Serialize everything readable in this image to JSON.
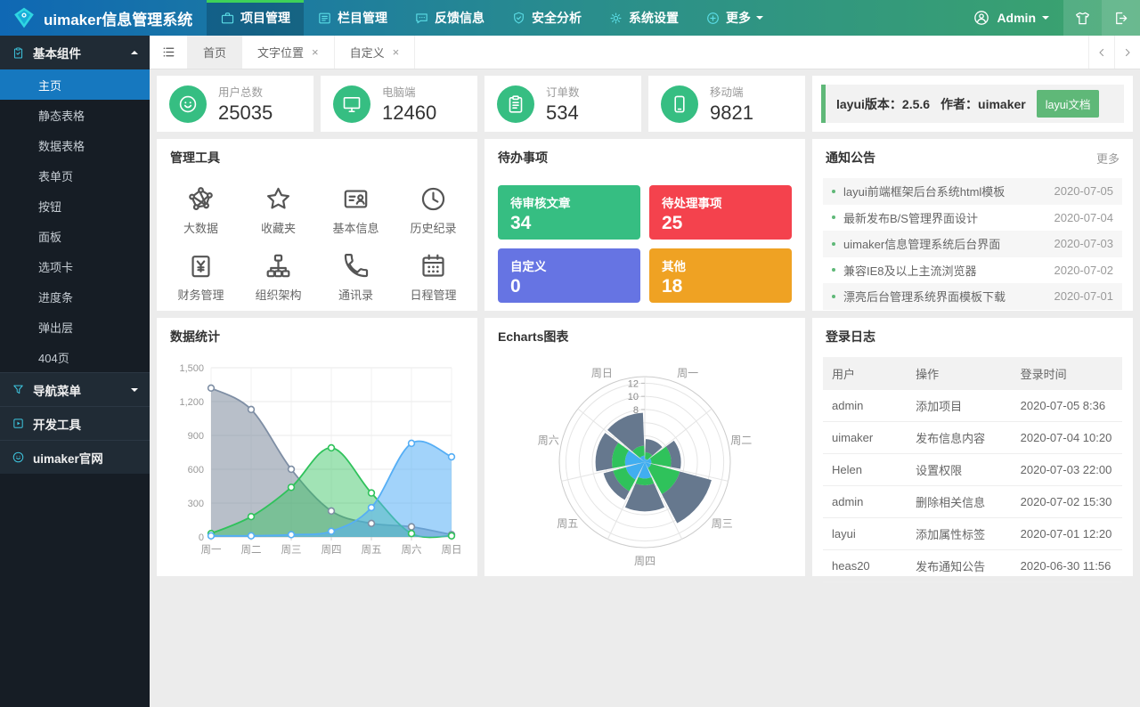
{
  "theme": {
    "header_gradient_left": "#0f68b4",
    "header_gradient_right": "#3ca46c",
    "nav_active_marker": "#3ed159",
    "nav_icon_cyan": "#5bdde6",
    "sidebar_bg": "#161d25",
    "sidebar_active_blue": "#1678bf",
    "accent_green": "#5FB878",
    "stat_icon_green": "#36be82"
  },
  "header": {
    "title": "uimaker信息管理系统",
    "logo_icon": "gem-icon",
    "nav": [
      {
        "label": "项目管理",
        "icon": "briefcase-icon",
        "active": true
      },
      {
        "label": "栏目管理",
        "icon": "list-icon",
        "active": false
      },
      {
        "label": "反馈信息",
        "icon": "chat-icon",
        "active": false
      },
      {
        "label": "安全分析",
        "icon": "shield-icon",
        "active": false
      },
      {
        "label": "系统设置",
        "icon": "gear-icon",
        "active": false
      },
      {
        "label": "更多",
        "icon": "plus-circle-icon",
        "active": false,
        "dropdown": true
      }
    ],
    "user": {
      "name": "Admin",
      "icon": "person-icon"
    },
    "actions": [
      {
        "icon": "tshirt-icon"
      },
      {
        "icon": "logout-icon"
      }
    ]
  },
  "sidebar": {
    "group": {
      "label": "基本组件",
      "icon": "clipboard-check-icon",
      "expanded": true
    },
    "items": [
      {
        "label": "主页",
        "active": true
      },
      {
        "label": "静态表格",
        "active": false
      },
      {
        "label": "数据表格",
        "active": false
      },
      {
        "label": "表单页",
        "active": false
      },
      {
        "label": "按钮",
        "active": false
      },
      {
        "label": "面板",
        "active": false
      },
      {
        "label": "选项卡",
        "active": false
      },
      {
        "label": "进度条",
        "active": false
      },
      {
        "label": "弹出层",
        "active": false
      },
      {
        "label": "404页",
        "active": false
      }
    ],
    "sections": [
      {
        "label": "导航菜单",
        "icon": "funnel-icon",
        "collapsed": true
      },
      {
        "label": "开发工具",
        "icon": "play-square-icon"
      },
      {
        "label": "uimaker官网",
        "icon": "smile-icon"
      }
    ]
  },
  "tabbar": {
    "menu_icon": "hamburger-icon",
    "tabs": [
      {
        "label": "首页",
        "active": true,
        "closable": false
      },
      {
        "label": "文字位置",
        "active": false,
        "closable": true
      },
      {
        "label": "自定义",
        "active": false,
        "closable": true
      }
    ],
    "close_glyph": "×",
    "scroll_icons": [
      "chevron-left-icon",
      "chevron-right-icon"
    ]
  },
  "stats": [
    {
      "label": "用户总数",
      "value": "25035",
      "icon": "smiley-icon"
    },
    {
      "label": "电脑端",
      "value": "12460",
      "icon": "monitor-icon"
    },
    {
      "label": "订单数",
      "value": "534",
      "icon": "clipboard-list-icon"
    },
    {
      "label": "移动端",
      "value": "9821",
      "icon": "mobile-icon"
    }
  ],
  "layui_info": {
    "version_label": "layui版本：2.5.6",
    "author_label": "作者：uimaker",
    "doc_button": "layui文档"
  },
  "tools": {
    "title": "管理工具",
    "items": [
      {
        "label": "大数据",
        "icon": "network-icon"
      },
      {
        "label": "收藏夹",
        "icon": "star-icon"
      },
      {
        "label": "基本信息",
        "icon": "idcard-icon"
      },
      {
        "label": "历史纪录",
        "icon": "clock-icon"
      },
      {
        "label": "财务管理",
        "icon": "finance-icon"
      },
      {
        "label": "组织架构",
        "icon": "orgchart-icon"
      },
      {
        "label": "通讯录",
        "icon": "phone-icon"
      },
      {
        "label": "日程管理",
        "icon": "calendar-icon"
      }
    ]
  },
  "todo": {
    "title": "待办事项",
    "items": [
      {
        "label": "待审核文章",
        "value": "34",
        "color": "#36be82"
      },
      {
        "label": "待处理事项",
        "value": "25",
        "color": "#f4424d"
      },
      {
        "label": "自定义",
        "value": "0",
        "color": "#6674e3"
      },
      {
        "label": "其他",
        "value": "18",
        "color": "#efa223"
      }
    ]
  },
  "notice": {
    "title": "通知公告",
    "more": "更多",
    "items": [
      {
        "text": "layui前端框架后台系统html模板",
        "date": "2020-07-05"
      },
      {
        "text": "最新发布B/S管理界面设计",
        "date": "2020-07-04"
      },
      {
        "text": "uimaker信息管理系统后台界面",
        "date": "2020-07-03"
      },
      {
        "text": "兼容IE8及以上主流浏览器",
        "date": "2020-07-02"
      },
      {
        "text": "漂亮后台管理系统界面模板下载",
        "date": "2020-07-01"
      }
    ]
  },
  "login_log": {
    "title": "登录日志",
    "columns": [
      "用户",
      "操作",
      "登录时间"
    ],
    "rows": [
      [
        "admin",
        "添加项目",
        "2020-07-05 8:36"
      ],
      [
        "uimaker",
        "发布信息内容",
        "2020-07-04 10:20"
      ],
      [
        "Helen",
        "设置权限",
        "2020-07-03 22:00"
      ],
      [
        "admin",
        "删除相关信息",
        "2020-07-02 15:30"
      ],
      [
        "layui",
        "添加属性标签",
        "2020-07-01 12:20"
      ],
      [
        "heas20",
        "发布通知公告",
        "2020-06-30 11:56"
      ]
    ]
  },
  "chart_data": [
    {
      "type": "area",
      "title": "数据统计",
      "categories": [
        "周一",
        "周二",
        "周三",
        "周四",
        "周五",
        "周六",
        "周日"
      ],
      "series": [
        {
          "name": "series-gray",
          "color": "#7e8ea4",
          "fill": "rgba(113,128,148,0.50)",
          "values": [
            1320,
            1130,
            600,
            230,
            120,
            90,
            20
          ]
        },
        {
          "name": "series-green",
          "color": "#2fc25b",
          "fill": "rgba(47,194,91,0.45)",
          "values": [
            30,
            180,
            440,
            790,
            390,
            30,
            10
          ]
        },
        {
          "name": "series-blue",
          "color": "#55aef5",
          "fill": "rgba(85,174,245,0.55)",
          "values": [
            10,
            10,
            20,
            50,
            260,
            830,
            710
          ]
        }
      ],
      "ylim": [
        0,
        1500
      ],
      "yticks": [
        0,
        300,
        600,
        900,
        1200,
        1500
      ],
      "ytick_labels": [
        "0",
        "300",
        "600",
        "900",
        "1,200",
        "1,500"
      ],
      "smooth": true,
      "grid": true,
      "legend_position": "none"
    },
    {
      "type": "polar-stacked-bar",
      "title": "Echarts图表",
      "categories": [
        "周一",
        "周二",
        "周三",
        "周四",
        "周五",
        "周六",
        "周日"
      ],
      "series": [
        {
          "name": "series-blue",
          "color": "#41aef0",
          "values": [
            0.5,
            1,
            1,
            2.5,
            3,
            3,
            1
          ]
        },
        {
          "name": "series-green",
          "color": "#2fc25b",
          "values": [
            1,
            3,
            4.5,
            1,
            2,
            2,
            1.5
          ]
        },
        {
          "name": "series-gray",
          "color": "#66788e",
          "values": [
            2,
            1.5,
            5,
            4,
            1.5,
            2.5,
            5
          ]
        }
      ],
      "rmax": 13,
      "rticks": [
        8,
        10,
        12
      ],
      "grid": true,
      "legend_position": "none"
    }
  ]
}
